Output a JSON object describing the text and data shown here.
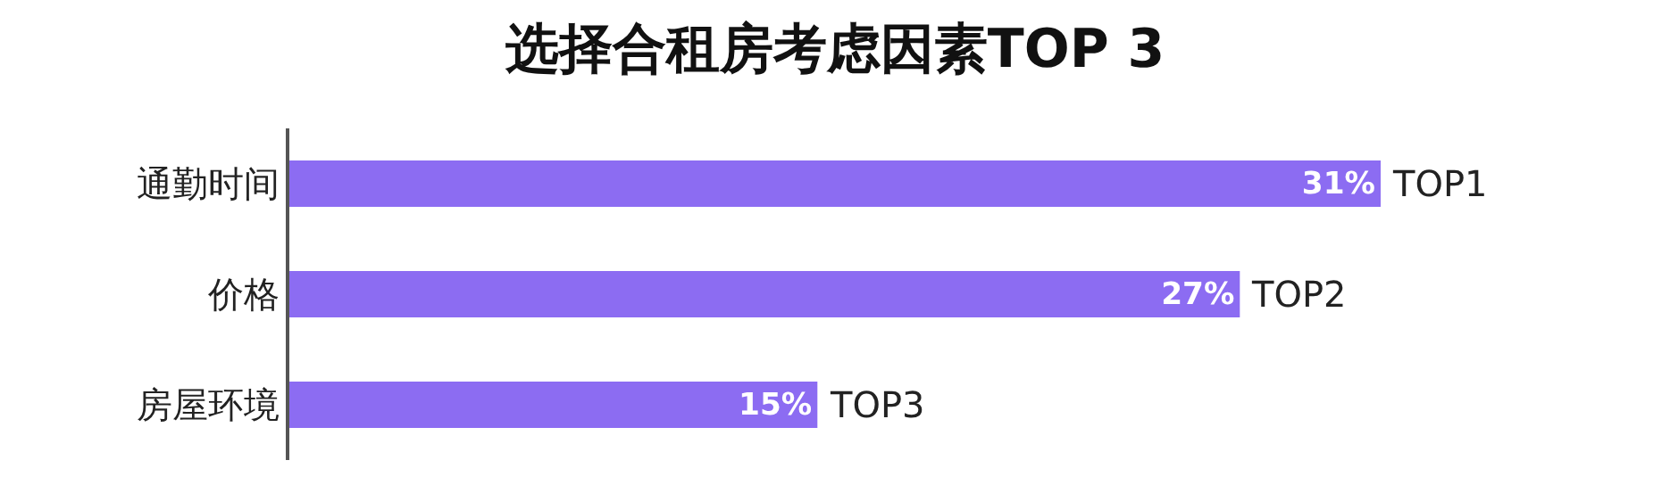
{
  "chart_data": {
    "type": "bar",
    "orientation": "horizontal",
    "title": "选择合租房考虑因素TOP 3",
    "categories": [
      "通勤时间",
      "价格",
      "房屋环境"
    ],
    "values": [
      31,
      27,
      15
    ],
    "value_labels": [
      "31%",
      "27%",
      "15%"
    ],
    "color": "#8c6cf2",
    "tick_labels": "y",
    "legend": false,
    "annotations": [
      {
        "text": "TOP1",
        "x": 31,
        "y": "通勤时间"
      },
      {
        "text": "TOP2",
        "x": 27,
        "y": "价格"
      },
      {
        "text": "TOP3",
        "x": 15,
        "y": "房屋环境"
      }
    ]
  }
}
